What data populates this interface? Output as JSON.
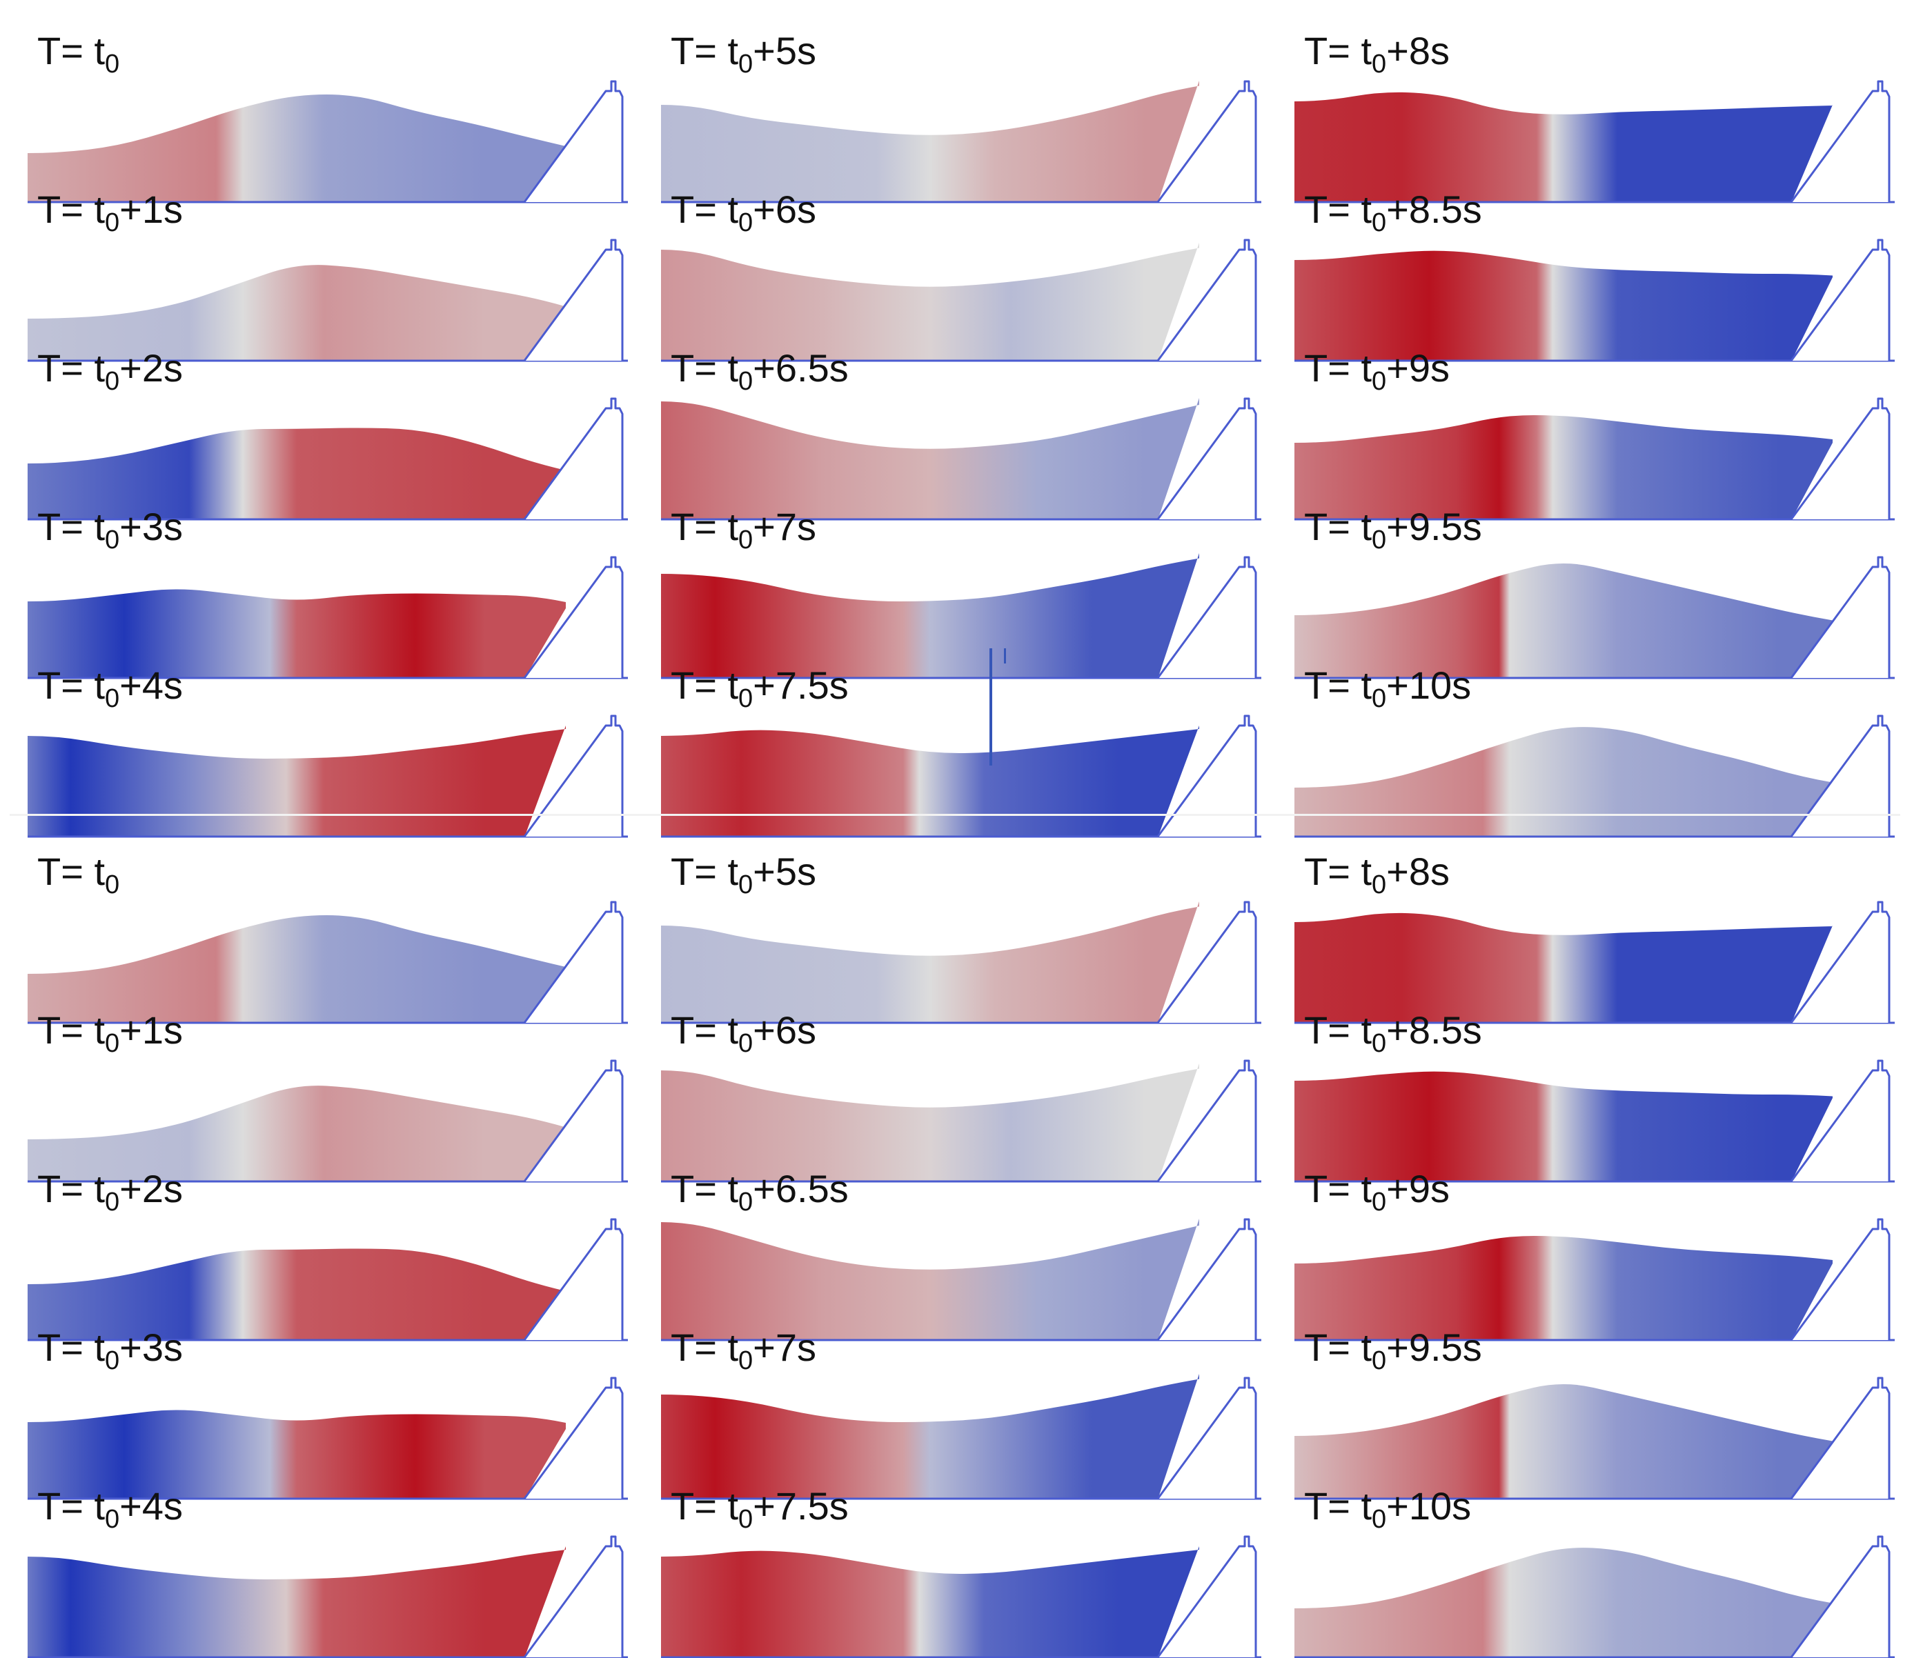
{
  "colors": {
    "positive": "#b8121f",
    "neutral": "#dcdcdc",
    "negative": "#2238b8",
    "structure": "#4a5bd0",
    "background": "#ffffff"
  },
  "groups": [
    {
      "columns": [
        {
          "panels": [
            {
              "prefix": "T= t",
              "sub": "0",
              "suffix": ""
            },
            {
              "prefix": "T= t",
              "sub": "0",
              "suffix": "+1s"
            },
            {
              "prefix": "T= t",
              "sub": "0",
              "suffix": "+2s"
            },
            {
              "prefix": "T= t",
              "sub": "0",
              "suffix": "+3s"
            },
            {
              "prefix": "T= t",
              "sub": "0",
              "suffix": "+4s"
            }
          ]
        },
        {
          "panels": [
            {
              "prefix": "T= t",
              "sub": "0",
              "suffix": "+5s"
            },
            {
              "prefix": "T= t",
              "sub": "0",
              "suffix": "+6s"
            },
            {
              "prefix": "T= t",
              "sub": "0",
              "suffix": "+6.5s"
            },
            {
              "prefix": "T= t",
              "sub": "0",
              "suffix": "+7s"
            },
            {
              "prefix": "T= t",
              "sub": "0",
              "suffix": "+7.5s"
            }
          ]
        },
        {
          "panels": [
            {
              "prefix": "T= t",
              "sub": "0",
              "suffix": "+8s"
            },
            {
              "prefix": "T= t",
              "sub": "0",
              "suffix": "+8.5s"
            },
            {
              "prefix": "T= t",
              "sub": "0",
              "suffix": "+9s"
            },
            {
              "prefix": "T= t",
              "sub": "0",
              "suffix": "+9.5s"
            },
            {
              "prefix": "T= t",
              "sub": "0",
              "suffix": "+10s"
            }
          ]
        }
      ]
    },
    {
      "columns": [
        {
          "panels": [
            {
              "prefix": "T= t",
              "sub": "0",
              "suffix": ""
            },
            {
              "prefix": "T= t",
              "sub": "0",
              "suffix": "+1s"
            },
            {
              "prefix": "T= t",
              "sub": "0",
              "suffix": "+2s"
            },
            {
              "prefix": "T= t",
              "sub": "0",
              "suffix": "+3s"
            },
            {
              "prefix": "T= t",
              "sub": "0",
              "suffix": "+4s"
            }
          ]
        },
        {
          "panels": [
            {
              "prefix": "T= t",
              "sub": "0",
              "suffix": "+5s"
            },
            {
              "prefix": "T= t",
              "sub": "0",
              "suffix": "+6s"
            },
            {
              "prefix": "T= t",
              "sub": "0",
              "suffix": "+6.5s"
            },
            {
              "prefix": "T= t",
              "sub": "0",
              "suffix": "+7s"
            },
            {
              "prefix": "T= t",
              "sub": "0",
              "suffix": "+7.5s"
            }
          ]
        },
        {
          "panels": [
            {
              "prefix": "T= t",
              "sub": "0",
              "suffix": "+8s"
            },
            {
              "prefix": "T= t",
              "sub": "0",
              "suffix": "+8.5s"
            },
            {
              "prefix": "T= t",
              "sub": "0",
              "suffix": "+9s"
            },
            {
              "prefix": "T= t",
              "sub": "0",
              "suffix": "+9.5s"
            },
            {
              "prefix": "T= t",
              "sub": "0",
              "suffix": "+10s"
            }
          ]
        }
      ]
    }
  ]
}
